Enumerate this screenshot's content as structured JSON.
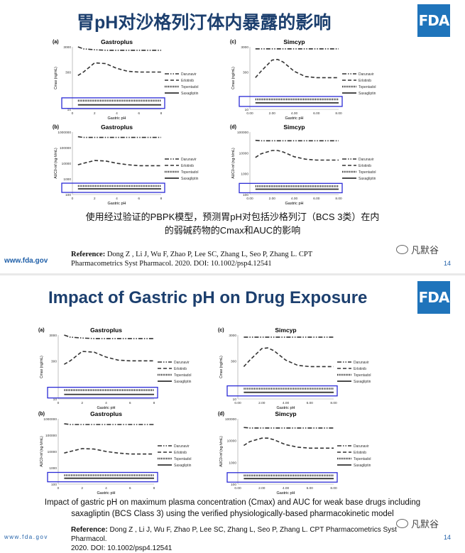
{
  "slide1": {
    "title": "胃pH对沙格列汀体内暴露的影响",
    "caption_line1": "使用经过验证的PBPK模型，预测胃pH对包括沙格列汀（BCS 3类）在内",
    "caption_line2": "的弱碱药物的Cmax和AUC的影响",
    "reference_label": "Reference:",
    "reference_line1": " Dong Z , Li J, Wu F, Zhao P, Lee SC, Zhang L, Seo P, Zhang L. CPT",
    "reference_line2": "Pharmacometrics Syst Pharmacol. 2020. DOI: 10.1002/psp4.12541",
    "site": "www.fda.gov",
    "page": "14",
    "logo": "FDA"
  },
  "slide2": {
    "title": "Impact of Gastric pH on Drug Exposure",
    "caption_line1": "Impact of gastric pH on maximum plasma concentration (Cmax) and AUC for weak base drugs including",
    "caption_line2": "saxagliptin (BCS Class 3) using the verified physiologically-based pharmacokinetic model",
    "reference_label": "Reference:",
    "reference_line1": " Dong Z , Li J, Wu F, Zhao P, Lee SC, Zhang L, Seo P, Zhang L. CPT Pharmacometrics Syst Pharmacol.",
    "reference_line2": "2020. DOI: 10.1002/psp4.12541",
    "site": "www.fda.gov",
    "page": "14",
    "logo": "FDA"
  },
  "watermark": "凡默谷",
  "legend": [
    "Darunavir",
    "Erlotinib",
    "Topentadol",
    "Saxagliptin"
  ],
  "chart_data": [
    {
      "type": "line",
      "panel": "(a)",
      "title": "Gastroplus",
      "ylabel": "Cmax (ng/mL)",
      "xlabel": "Gastric pH",
      "yscale": "log",
      "ylim": [
        10,
        3000
      ],
      "xlim": [
        0,
        8
      ],
      "x_ticks": [
        "0",
        "2",
        "4",
        "6",
        "8"
      ],
      "y_ticks": [
        "10",
        "300",
        "3000"
      ],
      "x": [
        0.5,
        1,
        2,
        3,
        4,
        5,
        6,
        7,
        8
      ],
      "series": [
        {
          "name": "Darunavir",
          "values": [
            3000,
            2500,
            2300,
            2200,
            2200,
            2200,
            2200,
            2200,
            2200
          ]
        },
        {
          "name": "Erlotinib",
          "values": [
            220,
            300,
            700,
            650,
            420,
            320,
            300,
            300,
            300
          ]
        },
        {
          "name": "Topentadol",
          "values": [
            22,
            22,
            22,
            22,
            22,
            22,
            22,
            22,
            22
          ]
        },
        {
          "name": "Saxagliptin",
          "values": [
            15,
            15,
            15,
            15,
            15,
            15,
            15,
            15,
            15
          ]
        }
      ]
    },
    {
      "type": "line",
      "panel": "(c)",
      "title": "Simcyp",
      "ylabel": "Cmax (ng/mL)",
      "xlabel": "Gastric pH",
      "yscale": "log",
      "ylim": [
        10,
        3000
      ],
      "xlim": [
        0,
        8
      ],
      "x_ticks": [
        "0.00",
        "2.00",
        "4.00",
        "6.00",
        "8.00"
      ],
      "y_ticks": [
        "10",
        "300",
        "3000"
      ],
      "x": [
        0.5,
        1,
        2,
        2.5,
        3,
        4,
        5,
        6,
        7,
        8
      ],
      "series": [
        {
          "name": "Darunavir",
          "values": [
            2500,
            2500,
            2500,
            2500,
            2500,
            2500,
            2500,
            2500,
            2500,
            2500
          ]
        },
        {
          "name": "Erlotinib",
          "values": [
            180,
            320,
            900,
            950,
            750,
            320,
            200,
            180,
            180,
            180
          ]
        },
        {
          "name": "Topentadol",
          "values": [
            25,
            25,
            25,
            25,
            25,
            25,
            25,
            25,
            25,
            25
          ]
        },
        {
          "name": "Saxagliptin",
          "values": [
            18,
            18,
            18,
            18,
            18,
            18,
            18,
            18,
            18,
            18
          ]
        }
      ]
    },
    {
      "type": "line",
      "panel": "(b)",
      "title": "Gastroplus",
      "ylabel": "AUC0-inf (ng·h/mL)",
      "xlabel": "Gastric pH",
      "yscale": "log",
      "ylim": [
        100,
        1000000
      ],
      "xlim": [
        0,
        8
      ],
      "x_ticks": [
        "0",
        "2",
        "4",
        "6",
        "8"
      ],
      "y_ticks": [
        "100",
        "1000",
        "10000",
        "100000",
        "1000000"
      ],
      "x": [
        0.5,
        1,
        2,
        3,
        4,
        5,
        6,
        7,
        8
      ],
      "series": [
        {
          "name": "Darunavir",
          "values": [
            500000,
            450000,
            450000,
            450000,
            450000,
            450000,
            450000,
            450000,
            450000
          ]
        },
        {
          "name": "Erlotinib",
          "values": [
            8000,
            10000,
            15000,
            14000,
            10000,
            8000,
            7000,
            7000,
            7000
          ]
        },
        {
          "name": "Topentadol",
          "values": [
            350,
            350,
            350,
            350,
            350,
            350,
            350,
            350,
            350
          ]
        },
        {
          "name": "Saxagliptin",
          "values": [
            230,
            230,
            230,
            230,
            230,
            230,
            230,
            230,
            230
          ]
        }
      ]
    },
    {
      "type": "line",
      "panel": "(d)",
      "title": "Simcyp",
      "ylabel": "AUC0-inf (ng·h/mL)",
      "xlabel": "Gastric pH",
      "yscale": "log",
      "ylim": [
        100,
        100000
      ],
      "xlim": [
        0,
        8
      ],
      "x_ticks": [
        "0.00",
        "2.00",
        "4.00",
        "6.00",
        "8.00"
      ],
      "y_ticks": [
        "100",
        "1000",
        "10000",
        "100000"
      ],
      "x": [
        0.5,
        1,
        2,
        2.5,
        3,
        4,
        5,
        6,
        7,
        8
      ],
      "series": [
        {
          "name": "Darunavir",
          "values": [
            40000,
            38000,
            38000,
            38000,
            38000,
            38000,
            38000,
            38000,
            38000,
            38000
          ]
        },
        {
          "name": "Erlotinib",
          "values": [
            6000,
            9000,
            13000,
            13000,
            11000,
            6500,
            5000,
            4500,
            4500,
            4500
          ]
        },
        {
          "name": "Topentadol",
          "values": [
            250,
            250,
            250,
            250,
            250,
            250,
            250,
            250,
            250,
            250
          ]
        },
        {
          "name": "Saxagliptin",
          "values": [
            180,
            180,
            180,
            180,
            180,
            180,
            180,
            180,
            180,
            180
          ]
        }
      ]
    }
  ]
}
